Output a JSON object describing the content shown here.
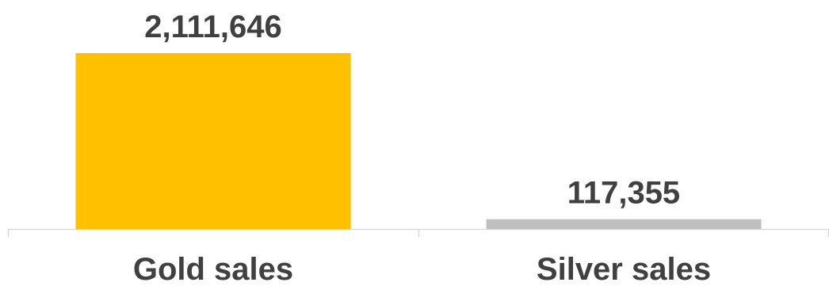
{
  "chart_data": {
    "type": "bar",
    "categories": [
      "Gold sales",
      "Silver sales"
    ],
    "values": [
      2111646,
      117355
    ],
    "value_labels": [
      "2,111,646",
      "117,355"
    ],
    "colors": [
      "#FFC000",
      "#BFBFBF"
    ],
    "axis_color": "#D9D9D9",
    "label_color": "#404040",
    "grid": false,
    "legend": "none",
    "ylim": [
      0,
      2111646
    ]
  }
}
